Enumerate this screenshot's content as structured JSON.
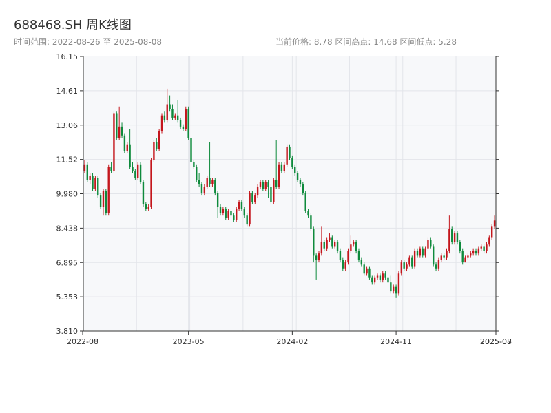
{
  "header": {
    "title": "688468.SH 周K线图",
    "range_text": "时间范围: 2022-08-26 至 2025-08-08",
    "stats_text": "当前价格: 8.78   区间高点: 14.68   区间低点: 5.28"
  },
  "chart_data": {
    "type": "candlestick",
    "title": "688468.SH 周K线图",
    "ylim": [
      3.81,
      16.15
    ],
    "y_ticks": [
      "3.810",
      "5.353",
      "6.895",
      "8.438",
      "9.980",
      "11.52",
      "13.06",
      "14.61",
      "16.15"
    ],
    "x_tick_labels": [
      "2022-08",
      "2023-05",
      "2024-02",
      "2024-11",
      "2025-07",
      "2025-08"
    ],
    "x_tick_index": [
      0,
      39,
      78,
      117,
      156,
      157
    ],
    "grid": true,
    "colors": {
      "up": "#c4161c",
      "down": "#0e8a3c",
      "plot_bg": "#f7f8fa",
      "grid": "#e3e5ea",
      "axis": "#333333"
    },
    "candles": [
      [
        11.0,
        11.3,
        11.5,
        10.9
      ],
      [
        11.3,
        10.6,
        11.4,
        10.5
      ],
      [
        10.6,
        10.8,
        10.9,
        10.4
      ],
      [
        10.8,
        10.2,
        10.9,
        10.1
      ],
      [
        10.2,
        10.7,
        10.8,
        10.1
      ],
      [
        10.7,
        9.9,
        10.8,
        9.8
      ],
      [
        9.9,
        9.4,
        10.0,
        9.3
      ],
      [
        9.4,
        10.1,
        10.2,
        9.0
      ],
      [
        10.1,
        9.1,
        10.2,
        9.0
      ],
      [
        9.1,
        11.2,
        11.3,
        9.0
      ],
      [
        11.2,
        11.0,
        11.4,
        10.9
      ],
      [
        11.0,
        13.6,
        13.7,
        10.9
      ],
      [
        13.6,
        12.5,
        13.7,
        12.4
      ],
      [
        12.5,
        13.0,
        13.9,
        12.4
      ],
      [
        13.0,
        12.6,
        13.2,
        12.5
      ],
      [
        12.6,
        11.9,
        12.7,
        11.8
      ],
      [
        11.9,
        12.2,
        12.3,
        11.8
      ],
      [
        12.2,
        11.2,
        12.9,
        11.1
      ],
      [
        11.2,
        11.0,
        11.4,
        10.9
      ],
      [
        11.0,
        10.7,
        11.1,
        10.6
      ],
      [
        10.7,
        11.3,
        11.4,
        10.6
      ],
      [
        11.3,
        10.5,
        11.4,
        10.4
      ],
      [
        10.5,
        9.5,
        10.6,
        9.4
      ],
      [
        9.5,
        9.3,
        9.6,
        9.2
      ],
      [
        9.3,
        9.4,
        9.5,
        9.2
      ],
      [
        9.4,
        11.5,
        11.6,
        9.3
      ],
      [
        11.5,
        12.3,
        12.4,
        11.4
      ],
      [
        12.3,
        12.0,
        12.5,
        11.9
      ],
      [
        12.0,
        12.8,
        12.9,
        11.9
      ],
      [
        12.8,
        13.5,
        13.6,
        12.7
      ],
      [
        13.5,
        13.3,
        13.7,
        13.2
      ],
      [
        13.3,
        14.0,
        14.7,
        13.2
      ],
      [
        14.0,
        13.8,
        14.4,
        13.7
      ],
      [
        13.8,
        13.4,
        14.0,
        13.3
      ],
      [
        13.4,
        13.5,
        13.6,
        13.3
      ],
      [
        13.5,
        13.3,
        14.2,
        13.2
      ],
      [
        13.3,
        13.0,
        13.4,
        12.9
      ],
      [
        13.0,
        12.9,
        13.1,
        12.8
      ],
      [
        12.9,
        13.8,
        13.9,
        12.8
      ],
      [
        13.8,
        12.5,
        13.9,
        12.4
      ],
      [
        12.5,
        11.4,
        12.6,
        11.3
      ],
      [
        11.4,
        11.2,
        11.5,
        11.1
      ],
      [
        11.2,
        10.6,
        11.3,
        10.5
      ],
      [
        10.6,
        10.4,
        10.9,
        10.3
      ],
      [
        10.4,
        10.0,
        10.5,
        9.9
      ],
      [
        10.0,
        10.3,
        10.4,
        9.9
      ],
      [
        10.3,
        10.7,
        10.8,
        10.2
      ],
      [
        10.7,
        10.4,
        12.3,
        10.3
      ],
      [
        10.4,
        10.6,
        10.7,
        10.3
      ],
      [
        10.6,
        10.0,
        10.7,
        9.9
      ],
      [
        10.0,
        9.4,
        10.1,
        8.9
      ],
      [
        9.4,
        9.1,
        9.5,
        9.0
      ],
      [
        9.1,
        9.3,
        9.4,
        9.0
      ],
      [
        9.3,
        8.9,
        9.4,
        8.8
      ],
      [
        8.9,
        9.2,
        9.3,
        8.8
      ],
      [
        9.2,
        9.0,
        9.3,
        8.9
      ],
      [
        9.0,
        8.8,
        9.1,
        8.7
      ],
      [
        8.8,
        9.3,
        9.4,
        8.7
      ],
      [
        9.3,
        9.6,
        9.7,
        9.2
      ],
      [
        9.6,
        9.3,
        9.7,
        9.2
      ],
      [
        9.3,
        9.0,
        9.4,
        8.9
      ],
      [
        9.0,
        8.6,
        9.1,
        8.5
      ],
      [
        8.6,
        10.0,
        10.1,
        8.5
      ],
      [
        10.0,
        9.6,
        10.1,
        9.5
      ],
      [
        9.6,
        9.9,
        10.0,
        9.5
      ],
      [
        9.9,
        10.3,
        10.4,
        9.8
      ],
      [
        10.3,
        10.5,
        10.6,
        10.2
      ],
      [
        10.5,
        10.2,
        10.6,
        10.1
      ],
      [
        10.2,
        10.5,
        10.6,
        10.1
      ],
      [
        10.5,
        10.3,
        10.6,
        9.8
      ],
      [
        10.3,
        9.6,
        10.4,
        9.5
      ],
      [
        9.6,
        10.6,
        10.7,
        9.5
      ],
      [
        10.6,
        10.3,
        12.4,
        10.2
      ],
      [
        10.3,
        11.3,
        11.4,
        10.2
      ],
      [
        11.3,
        11.0,
        11.4,
        10.9
      ],
      [
        11.0,
        11.3,
        11.4,
        10.9
      ],
      [
        11.3,
        12.1,
        12.2,
        11.2
      ],
      [
        12.1,
        11.6,
        12.2,
        11.5
      ],
      [
        11.6,
        11.2,
        11.7,
        11.1
      ],
      [
        11.2,
        10.9,
        11.3,
        10.8
      ],
      [
        10.9,
        10.6,
        11.0,
        10.5
      ],
      [
        10.6,
        10.4,
        10.7,
        10.3
      ],
      [
        10.4,
        10.0,
        10.5,
        9.9
      ],
      [
        10.0,
        9.2,
        10.1,
        9.1
      ],
      [
        9.2,
        9.0,
        9.3,
        8.9
      ],
      [
        9.0,
        8.4,
        9.1,
        8.3
      ],
      [
        8.4,
        7.2,
        8.5,
        6.9
      ],
      [
        7.2,
        7.0,
        7.3,
        6.1
      ],
      [
        7.0,
        7.3,
        7.4,
        6.9
      ],
      [
        7.3,
        7.8,
        8.5,
        7.2
      ],
      [
        7.8,
        7.5,
        7.9,
        7.4
      ],
      [
        7.5,
        7.9,
        8.0,
        7.4
      ],
      [
        7.9,
        8.0,
        8.2,
        7.8
      ],
      [
        8.0,
        7.6,
        8.1,
        7.5
      ],
      [
        7.6,
        7.8,
        7.9,
        7.5
      ],
      [
        7.8,
        7.4,
        7.9,
        7.3
      ],
      [
        7.4,
        7.0,
        7.5,
        6.9
      ],
      [
        7.0,
        6.6,
        7.1,
        6.5
      ],
      [
        6.6,
        6.9,
        7.0,
        6.5
      ],
      [
        6.9,
        7.4,
        7.5,
        6.8
      ],
      [
        7.4,
        7.7,
        8.1,
        7.3
      ],
      [
        7.7,
        7.8,
        7.9,
        7.6
      ],
      [
        7.8,
        7.4,
        7.9,
        7.3
      ],
      [
        7.4,
        7.0,
        7.5,
        6.9
      ],
      [
        7.0,
        6.8,
        7.1,
        6.7
      ],
      [
        6.8,
        6.4,
        6.9,
        6.3
      ],
      [
        6.4,
        6.6,
        6.7,
        6.3
      ],
      [
        6.6,
        6.2,
        6.7,
        6.1
      ],
      [
        6.2,
        6.0,
        6.3,
        5.9
      ],
      [
        6.0,
        6.2,
        6.3,
        5.9
      ],
      [
        6.2,
        6.3,
        6.4,
        6.1
      ],
      [
        6.3,
        6.1,
        6.4,
        6.0
      ],
      [
        6.1,
        6.4,
        6.5,
        6.0
      ],
      [
        6.4,
        6.2,
        6.5,
        6.1
      ],
      [
        6.2,
        6.0,
        6.3,
        5.9
      ],
      [
        6.0,
        5.6,
        6.3,
        5.5
      ],
      [
        5.6,
        5.8,
        5.9,
        5.5
      ],
      [
        5.8,
        5.5,
        5.9,
        5.3
      ],
      [
        5.5,
        6.4,
        6.5,
        5.4
      ],
      [
        6.4,
        6.9,
        7.0,
        6.3
      ],
      [
        6.9,
        6.6,
        7.0,
        6.5
      ],
      [
        6.6,
        6.8,
        6.9,
        6.5
      ],
      [
        6.8,
        7.1,
        7.2,
        6.7
      ],
      [
        7.1,
        6.7,
        7.2,
        6.6
      ],
      [
        6.7,
        7.4,
        7.5,
        6.6
      ],
      [
        7.4,
        7.2,
        7.5,
        7.1
      ],
      [
        7.2,
        7.5,
        7.6,
        7.1
      ],
      [
        7.5,
        7.2,
        7.6,
        7.1
      ],
      [
        7.2,
        7.5,
        7.6,
        7.1
      ],
      [
        7.5,
        7.9,
        8.0,
        7.4
      ],
      [
        7.9,
        7.6,
        8.0,
        7.5
      ],
      [
        7.6,
        6.8,
        7.7,
        6.7
      ],
      [
        6.8,
        6.6,
        6.9,
        6.5
      ],
      [
        6.6,
        7.0,
        7.1,
        6.5
      ],
      [
        7.0,
        7.2,
        7.3,
        6.9
      ],
      [
        7.2,
        7.1,
        7.3,
        7.0
      ],
      [
        7.1,
        7.4,
        7.5,
        7.0
      ],
      [
        7.4,
        8.4,
        9.0,
        7.3
      ],
      [
        8.4,
        7.8,
        8.5,
        7.7
      ],
      [
        7.8,
        8.2,
        8.3,
        7.7
      ],
      [
        8.2,
        7.8,
        8.3,
        7.7
      ],
      [
        7.8,
        7.4,
        7.9,
        7.3
      ],
      [
        7.4,
        6.9,
        7.5,
        6.8
      ],
      [
        6.9,
        7.1,
        7.2,
        6.9
      ],
      [
        7.1,
        7.2,
        7.3,
        7.0
      ],
      [
        7.2,
        7.3,
        7.4,
        7.1
      ],
      [
        7.3,
        7.4,
        7.5,
        7.2
      ],
      [
        7.4,
        7.3,
        7.5,
        7.2
      ],
      [
        7.3,
        7.5,
        7.6,
        7.2
      ],
      [
        7.5,
        7.6,
        7.7,
        7.4
      ],
      [
        7.6,
        7.4,
        7.7,
        7.3
      ],
      [
        7.4,
        7.7,
        7.8,
        7.3
      ],
      [
        7.7,
        8.0,
        8.1,
        7.6
      ],
      [
        8.0,
        8.5,
        8.6,
        7.9
      ],
      [
        8.5,
        8.78,
        9.0,
        8.4
      ]
    ]
  }
}
